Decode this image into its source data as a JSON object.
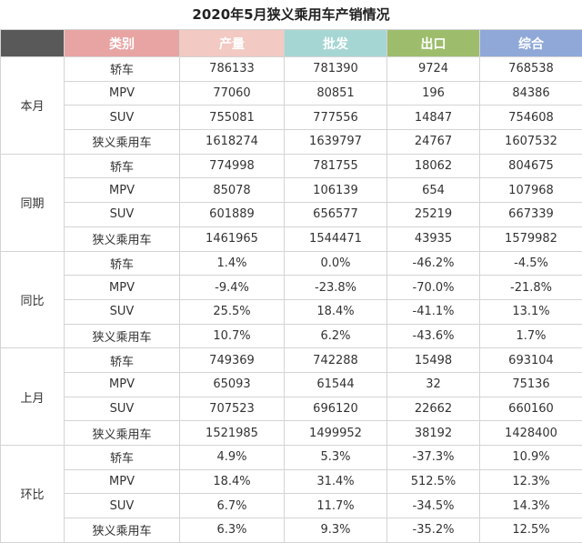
{
  "title": "2020年5月狭义乘用车产销情况",
  "header": [
    "类别",
    "产量",
    "批发",
    "出口",
    "综合"
  ],
  "groups": [
    {
      "label": "本月",
      "rows": [
        [
          "轿车",
          "786133",
          "781390",
          "9724",
          "768538"
        ],
        [
          "MPV",
          "77060",
          "80851",
          "196",
          "84386"
        ],
        [
          "SUV",
          "755081",
          "777556",
          "14847",
          "754608"
        ],
        [
          "狭义乘用车",
          "1618274",
          "1639797",
          "24767",
          "1607532"
        ]
      ]
    },
    {
      "label": "同期",
      "rows": [
        [
          "轿车",
          "774998",
          "781755",
          "18062",
          "804675"
        ],
        [
          "MPV",
          "85078",
          "106139",
          "654",
          "107968"
        ],
        [
          "SUV",
          "601889",
          "656577",
          "25219",
          "667339"
        ],
        [
          "狭义乘用车",
          "1461965",
          "1544471",
          "43935",
          "1579982"
        ]
      ]
    },
    {
      "label": "同比",
      "rows": [
        [
          "轿车",
          "1.4%",
          "0.0%",
          "-46.2%",
          "-4.5%"
        ],
        [
          "MPV",
          "-9.4%",
          "-23.8%",
          "-70.0%",
          "-21.8%"
        ],
        [
          "SUV",
          "25.5%",
          "18.4%",
          "-41.1%",
          "13.1%"
        ],
        [
          "狭义乘用车",
          "10.7%",
          "6.2%",
          "-43.6%",
          "1.7%"
        ]
      ]
    },
    {
      "label": "上月",
      "rows": [
        [
          "轿车",
          "749369",
          "742288",
          "15498",
          "693104"
        ],
        [
          "MPV",
          "65093",
          "61544",
          "32",
          "75136"
        ],
        [
          "SUV",
          "707523",
          "696120",
          "22662",
          "660160"
        ],
        [
          "狭义乘用车",
          "1521985",
          "1499952",
          "38192",
          "1428400"
        ]
      ]
    },
    {
      "label": "环比",
      "rows": [
        [
          "轿车",
          "4.9%",
          "5.3%",
          "-37.3%",
          "10.9%"
        ],
        [
          "MPV",
          "18.4%",
          "31.4%",
          "512.5%",
          "12.3%"
        ],
        [
          "SUV",
          "6.7%",
          "11.7%",
          "-34.5%",
          "14.3%"
        ],
        [
          "狭义乘用车",
          "6.3%",
          "9.3%",
          "-35.2%",
          "12.5%"
        ]
      ]
    }
  ]
}
